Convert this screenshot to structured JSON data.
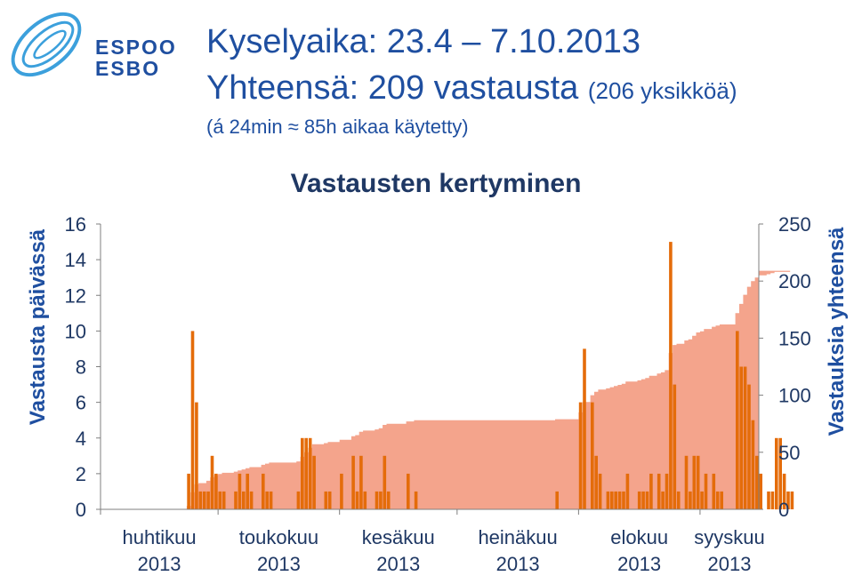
{
  "logo": {
    "line1": "ESPOO",
    "line2": "ESBO",
    "color": "#1f4fa0",
    "swirl_color": "#3ca0dc"
  },
  "header": {
    "line1": "Kyselyaika: 23.4 – 7.10.2013",
    "line2_main": "Yhteensä: 209 vastausta",
    "line2_sub": "(206 yksikköä)",
    "line3": "(á 24min ≈ 85h aikaa käytetty)"
  },
  "chart_data": {
    "type": "bar",
    "title": "Vastausten kertyminen",
    "ylabel": "Vastausta päivässä",
    "y2label": "Vastauksia yhteensä",
    "ylim": [
      0,
      16
    ],
    "y_ticks": [
      "16",
      "14",
      "12",
      "10",
      "8",
      "6",
      "4",
      "2",
      "0"
    ],
    "y2lim": [
      0,
      250
    ],
    "y2_ticks": [
      "250",
      "200",
      "150",
      "100",
      "50",
      "0"
    ],
    "x_range_days": 168,
    "x_labels": [
      {
        "line1": "huhtikuu",
        "line2": "2013",
        "day": 0
      },
      {
        "line1": "toukokuu",
        "line2": "2013",
        "day": 30
      },
      {
        "line1": "kesäkuu",
        "line2": "2013",
        "day": 61
      },
      {
        "line1": "heinäkuu",
        "line2": "2013",
        "day": 91
      },
      {
        "line1": "elokuu",
        "line2": "2013",
        "day": 122
      },
      {
        "line1": "syyskuu",
        "line2": "2013",
        "day": 153
      }
    ],
    "series": [
      {
        "name": "Vastausta päivässä",
        "kind": "bar",
        "color": "#e46c0a",
        "day_values": {
          "22": 2,
          "23": 10,
          "24": 6,
          "25": 1,
          "26": 1,
          "27": 1,
          "28": 3,
          "29": 2,
          "30": 1,
          "31": 1,
          "34": 1,
          "35": 2,
          "36": 1,
          "37": 2,
          "38": 1,
          "41": 2,
          "42": 1,
          "43": 1,
          "50": 1,
          "51": 4,
          "52": 4,
          "53": 4,
          "54": 3,
          "57": 1,
          "58": 1,
          "61": 2,
          "64": 3,
          "65": 1,
          "66": 3,
          "67": 1,
          "70": 1,
          "71": 1,
          "72": 3,
          "73": 1,
          "78": 2,
          "80": 1,
          "116": 1,
          "122": 6,
          "123": 9,
          "125": 6,
          "126": 3,
          "127": 2,
          "129": 1,
          "130": 1,
          "131": 1,
          "132": 1,
          "133": 1,
          "134": 2,
          "137": 1,
          "138": 1,
          "139": 1,
          "140": 2,
          "142": 2,
          "143": 1,
          "144": 2,
          "145": 15,
          "146": 7,
          "147": 1,
          "149": 3,
          "150": 1,
          "151": 3,
          "152": 3,
          "153": 1,
          "154": 2,
          "156": 2,
          "157": 1,
          "158": 1,
          "162": 10,
          "163": 8,
          "164": 8,
          "165": 7,
          "166": 5,
          "167": 3,
          "168": 2,
          "170": 1,
          "171": 1,
          "172": 4,
          "173": 4,
          "174": 2,
          "175": 1,
          "176": 1
        }
      },
      {
        "name": "Vastauksia yhteensä",
        "kind": "area",
        "color": "#f4a48c",
        "cumulative": [
          [
            22,
            3
          ],
          [
            23,
            15
          ],
          [
            24,
            22
          ],
          [
            25,
            23
          ],
          [
            27,
            25
          ],
          [
            28,
            28
          ],
          [
            29,
            30
          ],
          [
            30,
            31
          ],
          [
            31,
            32
          ],
          [
            34,
            33
          ],
          [
            35,
            34
          ],
          [
            36,
            35
          ],
          [
            37,
            36
          ],
          [
            38,
            37
          ],
          [
            41,
            39
          ],
          [
            42,
            40
          ],
          [
            43,
            41
          ],
          [
            50,
            42
          ],
          [
            51,
            46
          ],
          [
            52,
            50
          ],
          [
            53,
            54
          ],
          [
            54,
            57
          ],
          [
            57,
            58
          ],
          [
            58,
            59
          ],
          [
            61,
            61
          ],
          [
            64,
            64
          ],
          [
            65,
            65
          ],
          [
            66,
            68
          ],
          [
            67,
            69
          ],
          [
            70,
            70
          ],
          [
            71,
            71
          ],
          [
            72,
            74
          ],
          [
            73,
            75
          ],
          [
            78,
            77
          ],
          [
            80,
            78
          ],
          [
            116,
            79
          ],
          [
            122,
            85
          ],
          [
            123,
            94
          ],
          [
            125,
            100
          ],
          [
            126,
            103
          ],
          [
            127,
            105
          ],
          [
            129,
            106
          ],
          [
            130,
            107
          ],
          [
            131,
            108
          ],
          [
            132,
            109
          ],
          [
            133,
            110
          ],
          [
            134,
            112
          ],
          [
            137,
            113
          ],
          [
            138,
            114
          ],
          [
            139,
            115
          ],
          [
            140,
            117
          ],
          [
            142,
            119
          ],
          [
            143,
            120
          ],
          [
            144,
            122
          ],
          [
            145,
            137
          ],
          [
            146,
            144
          ],
          [
            147,
            145
          ],
          [
            149,
            148
          ],
          [
            150,
            149
          ],
          [
            151,
            152
          ],
          [
            152,
            155
          ],
          [
            153,
            156
          ],
          [
            154,
            158
          ],
          [
            156,
            160
          ],
          [
            157,
            161
          ],
          [
            158,
            162
          ],
          [
            162,
            172
          ],
          [
            163,
            180
          ],
          [
            164,
            188
          ],
          [
            165,
            195
          ],
          [
            166,
            200
          ],
          [
            167,
            203
          ],
          [
            168,
            205
          ],
          [
            170,
            206
          ],
          [
            171,
            207
          ],
          [
            172,
            208
          ],
          [
            176,
            209
          ]
        ]
      }
    ]
  }
}
